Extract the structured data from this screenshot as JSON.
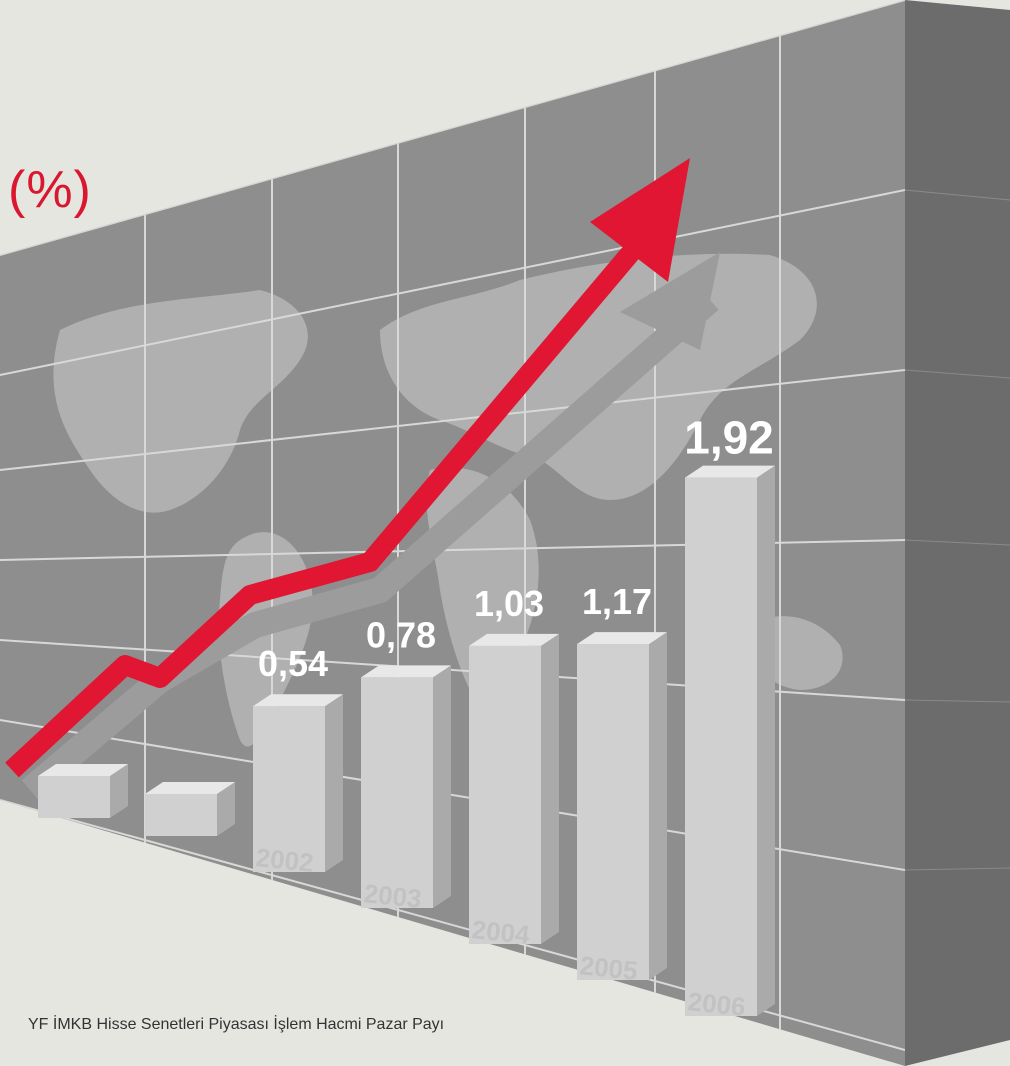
{
  "unit_label": "(%)",
  "caption": "YF İMKB Hisse Senetleri Piyasası İşlem Hacmi Pazar Payı",
  "colors": {
    "background": "#e6e6e1",
    "wall": "#8e8e8e",
    "wall_side": "#6c6c6c",
    "grid": "#d8d8d8",
    "map": "#b4b4b4",
    "bar_front": "#d0d0d0",
    "bar_side": "#aaaaaa",
    "bar_top": "#e8e8e8",
    "arrow_red": "#e01632",
    "arrow_gray": "#9c9c9c"
  },
  "chart_data": {
    "type": "bar",
    "title": "",
    "xlabel": "",
    "ylabel": "(%)",
    "categories": [
      "",
      "",
      "2002",
      "2003",
      "2004",
      "2005",
      "2006"
    ],
    "values": [
      null,
      null,
      0.54,
      0.78,
      1.03,
      1.17,
      1.92
    ],
    "value_labels": [
      "",
      "",
      "0,54",
      "0,78",
      "1,03",
      "1,17",
      "1,92"
    ],
    "trend_arrow": "up",
    "grid": true,
    "legend": "none"
  }
}
